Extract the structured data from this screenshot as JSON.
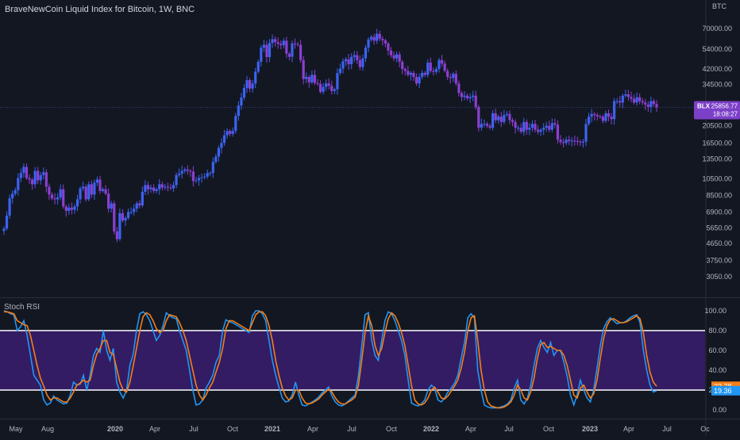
{
  "title": "BraveNewCoin Liquid Index for Bitcoin, 1W, BNC",
  "currency": "BTC",
  "indicator_title": "Stoch RSI",
  "colors": {
    "background": "#131722",
    "candle_up": "#3b63f0",
    "candle_down": "#8c3fd2",
    "k_line": "#2196f3",
    "d_line": "#f57f17",
    "band_fill": "#3a1d6e",
    "band_line": "#ffffff",
    "price_tag": "#7c40c8",
    "k_tag": "#2196f3",
    "d_tag": "#f57f17"
  },
  "price_tag": {
    "symbol": "BLX",
    "value": "25856.77",
    "countdown": "18:08:27"
  },
  "k_tag": "19.36",
  "d_tag": "23.78",
  "chart_data": [
    {
      "type": "candlestick",
      "yscale": "log",
      "ylim": [
        3200,
        80000
      ],
      "yticks": [
        "70000.00",
        "54000.00",
        "42000.00",
        "34500.00",
        "20500.00",
        "16500.00",
        "13500.00",
        "10500.00",
        "8500.00",
        "6900.00",
        "5650.00",
        "4650.00",
        "3750.00",
        "3050.00"
      ],
      "last_close": 25856.77,
      "xticks": [
        "May",
        "Aug",
        "2020",
        "Apr",
        "Jul",
        "Oct",
        "2021",
        "Apr",
        "Jul",
        "Oct",
        "2022",
        "Apr",
        "Jul",
        "Oct",
        "2023",
        "Apr",
        "Jul",
        "Oc"
      ],
      "closes": [
        5600,
        6600,
        8200,
        8700,
        9100,
        10600,
        11300,
        12200,
        10600,
        10400,
        9800,
        11600,
        10300,
        11000,
        11400,
        9500,
        8600,
        8200,
        8100,
        8300,
        9200,
        7400,
        7000,
        7300,
        7100,
        7400,
        8100,
        9300,
        9500,
        8100,
        9800,
        8600,
        10000,
        10400,
        9000,
        9200,
        8700,
        7200,
        7700,
        5400,
        4900,
        6800,
        6200,
        6400,
        6900,
        6900,
        7200,
        7700,
        7500,
        8900,
        9700,
        9200,
        9400,
        9000,
        9200,
        9800,
        9400,
        9500,
        9400,
        9300,
        9700,
        11000,
        11200,
        11600,
        11800,
        11600,
        11500,
        10200,
        10300,
        10600,
        10700,
        10800,
        11300,
        11300,
        13000,
        13900,
        15500,
        16500,
        18200,
        19200,
        18500,
        19200,
        23200,
        26500,
        29300,
        33000,
        36500,
        32800,
        35000,
        40600,
        46000,
        55000,
        57000,
        48800,
        58300,
        61200,
        59000,
        57700,
        56700,
        60000,
        51000,
        49000,
        58000,
        57500,
        57000,
        47000,
        37000,
        38000,
        35500,
        39000,
        35200,
        34800,
        31500,
        33500,
        35000,
        34000,
        31800,
        32500,
        39900,
        42200,
        46300,
        47500,
        44600,
        48900,
        50000,
        47000,
        43000,
        48000,
        55000,
        61000,
        63000,
        60000,
        65500,
        61500,
        60300,
        58000,
        53000,
        50000,
        48000,
        50500,
        46000,
        42000,
        41000,
        39000,
        40000,
        38000,
        35000,
        38000,
        40000,
        39000,
        45500,
        41000,
        40500,
        42000,
        47000,
        45000,
        41000,
        38000,
        37500,
        39500,
        35000,
        31000,
        29500,
        30000,
        29000,
        29500,
        30000,
        26000,
        20000,
        21000,
        21000,
        20500,
        20000,
        24000,
        22000,
        23000,
        21500,
        23500,
        23800,
        22000,
        21500,
        20000,
        20000,
        19000,
        21500,
        19500,
        20000,
        21000,
        19500,
        19000,
        19500,
        20000,
        20500,
        19500,
        21200,
        20800,
        17200,
        16700,
        16500,
        17200,
        16900,
        17000,
        16900,
        16800,
        16600,
        16800,
        21000,
        23000,
        23800,
        23500,
        23100,
        23000,
        21800,
        24000,
        23000,
        22300,
        28000,
        28000,
        27500,
        30000,
        30500,
        29500,
        28800,
        27500,
        29400,
        28000,
        27500,
        26800,
        26000,
        28000,
        27000,
        25856.77
      ],
      "note_closes": "weekly closing prices, estimated from the chart"
    },
    {
      "type": "line",
      "name": "Stoch RSI",
      "ylim": [
        -5,
        105
      ],
      "yticks": [
        "100.00",
        "80.00",
        "60.00",
        "40.00",
        "20.00",
        "0.00"
      ],
      "bands": [
        20,
        80
      ],
      "k": [
        100,
        99,
        97,
        96,
        80,
        84,
        90,
        75,
        55,
        35,
        30,
        25,
        10,
        5,
        7,
        14,
        10,
        8,
        6,
        7,
        15,
        28,
        25,
        26,
        35,
        20,
        35,
        55,
        62,
        58,
        80,
        60,
        50,
        62,
        28,
        18,
        12,
        20,
        45,
        56,
        80,
        97,
        99,
        96,
        90,
        80,
        70,
        75,
        85,
        98,
        95,
        93,
        92,
        80,
        70,
        60,
        40,
        20,
        5,
        6,
        10,
        22,
        28,
        35,
        48,
        55,
        80,
        91,
        89,
        88,
        86,
        84,
        82,
        80,
        78,
        95,
        100,
        100,
        97,
        90,
        70,
        50,
        35,
        23,
        12,
        8,
        9,
        15,
        28,
        15,
        5,
        4,
        6,
        8,
        10,
        13,
        17,
        20,
        23,
        14,
        8,
        5,
        4,
        6,
        9,
        12,
        15,
        35,
        65,
        96,
        98,
        70,
        55,
        50,
        70,
        90,
        99,
        97,
        90,
        80,
        70,
        55,
        30,
        7,
        5,
        4,
        6,
        10,
        20,
        25,
        22,
        10,
        8,
        12,
        18,
        22,
        27,
        35,
        52,
        68,
        93,
        97,
        93,
        40,
        20,
        5,
        3,
        2,
        2,
        2,
        3,
        4,
        6,
        10,
        22,
        30,
        10,
        6,
        12,
        25,
        45,
        62,
        70,
        63,
        58,
        68,
        55,
        60,
        60,
        48,
        34,
        15,
        5,
        15,
        30,
        20,
        12,
        8,
        20,
        42,
        65,
        82,
        89,
        93,
        90,
        87,
        88,
        88,
        90,
        93,
        95,
        96,
        88,
        60,
        40,
        25,
        18,
        19.36
      ],
      "d": [
        99,
        99,
        98,
        97,
        90,
        88,
        86,
        85,
        75,
        60,
        45,
        32,
        24,
        15,
        10,
        12,
        12,
        10,
        8,
        8,
        12,
        18,
        25,
        27,
        30,
        28,
        30,
        45,
        56,
        62,
        70,
        70,
        58,
        56,
        42,
        28,
        20,
        18,
        28,
        44,
        62,
        80,
        94,
        98,
        96,
        90,
        82,
        78,
        80,
        90,
        96,
        95,
        94,
        88,
        80,
        70,
        55,
        40,
        25,
        15,
        10,
        15,
        22,
        28,
        38,
        48,
        62,
        82,
        90,
        90,
        88,
        86,
        84,
        82,
        80,
        88,
        96,
        99,
        99,
        95,
        85,
        70,
        50,
        35,
        22,
        14,
        10,
        12,
        20,
        20,
        12,
        7,
        6,
        7,
        9,
        11,
        15,
        18,
        21,
        18,
        12,
        8,
        6,
        6,
        8,
        10,
        13,
        25,
        50,
        78,
        95,
        85,
        65,
        55,
        62,
        78,
        92,
        98,
        95,
        88,
        78,
        65,
        45,
        25,
        10,
        6,
        5,
        7,
        12,
        20,
        23,
        18,
        12,
        11,
        14,
        19,
        24,
        30,
        42,
        58,
        80,
        93,
        95,
        70,
        40,
        20,
        8,
        4,
        3,
        2,
        2,
        3,
        5,
        8,
        15,
        25,
        20,
        12,
        10,
        18,
        32,
        52,
        66,
        68,
        63,
        64,
        62,
        60,
        60,
        55,
        45,
        30,
        15,
        12,
        22,
        25,
        18,
        12,
        16,
        30,
        52,
        72,
        85,
        91,
        92,
        90,
        88,
        88,
        89,
        91,
        93,
        95,
        92,
        78,
        55,
        38,
        28,
        23.78
      ]
    }
  ]
}
